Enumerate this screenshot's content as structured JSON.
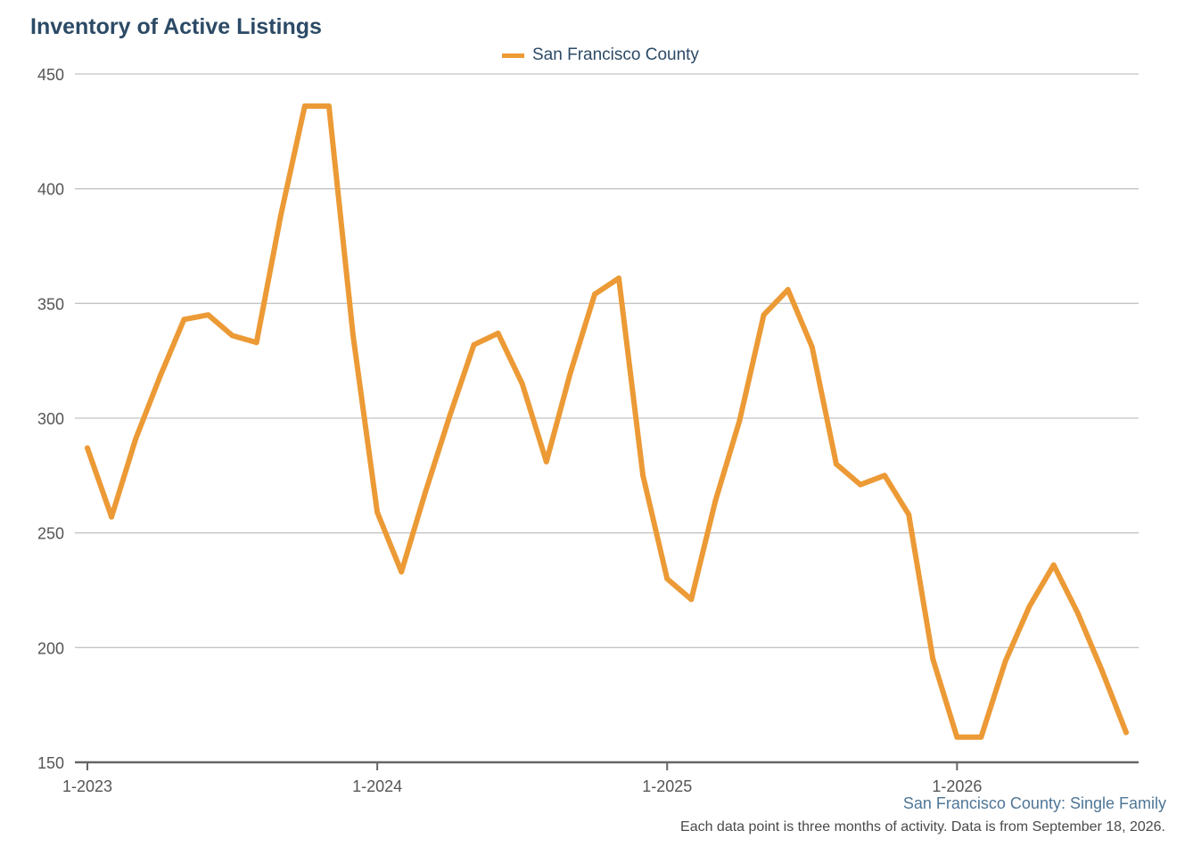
{
  "title": "Inventory of Active Listings",
  "legend": {
    "label": "San Francisco County"
  },
  "footer": {
    "subtitle": "San Francisco County: Single Family",
    "note": "Each data point is three months of activity. Data is from September 18, 2026."
  },
  "colors": {
    "series": "#ec9a36",
    "title": "#2c4a66",
    "grid": "#c4c4c4",
    "axis": "#666666"
  },
  "chart_data": {
    "type": "line",
    "title": "Inventory of Active Listings",
    "xlabel": "",
    "ylabel": "",
    "ylim": [
      150,
      450
    ],
    "yticks": [
      150,
      200,
      250,
      300,
      350,
      400,
      450
    ],
    "xtick_labels": [
      "1-2023",
      "1-2024",
      "1-2025",
      "1-2026"
    ],
    "x": [
      "1-2023",
      "2-2023",
      "3-2023",
      "4-2023",
      "5-2023",
      "6-2023",
      "7-2023",
      "8-2023",
      "9-2023",
      "10-2023",
      "11-2023",
      "12-2023",
      "1-2024",
      "2-2024",
      "3-2024",
      "4-2024",
      "5-2024",
      "6-2024",
      "7-2024",
      "8-2024",
      "9-2024",
      "10-2024",
      "11-2024",
      "12-2024",
      "1-2025",
      "2-2025",
      "3-2025",
      "4-2025",
      "5-2025",
      "6-2025",
      "7-2025",
      "8-2025",
      "9-2025",
      "10-2025",
      "11-2025",
      "12-2025",
      "1-2026",
      "2-2026",
      "3-2026",
      "4-2026",
      "5-2026",
      "6-2026",
      "7-2026",
      "8-2026"
    ],
    "grid": true,
    "legend_position": "top-center",
    "series": [
      {
        "name": "San Francisco County",
        "values": [
          287,
          257,
          291,
          318,
          343,
          345,
          336,
          333,
          388,
          436,
          436,
          336,
          259,
          233,
          268,
          301,
          332,
          337,
          315,
          281,
          320,
          354,
          361,
          275,
          230,
          221,
          264,
          299,
          345,
          356,
          331,
          280,
          271,
          275,
          258,
          195,
          161,
          161,
          194,
          218,
          236,
          215,
          190,
          163
        ]
      }
    ]
  }
}
